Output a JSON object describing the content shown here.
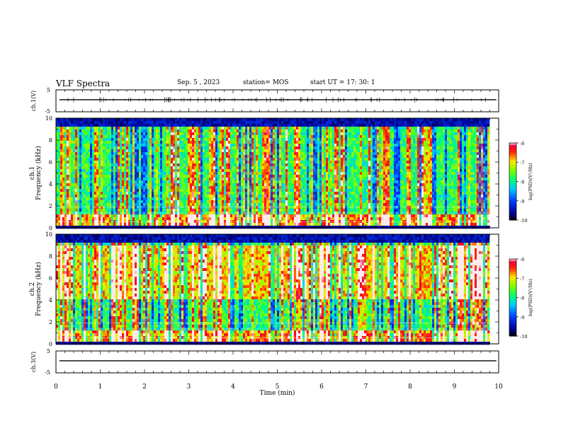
{
  "header": {
    "title": "VLF Spectra",
    "date": "Sep. 5 , 2023",
    "station": "station= MOS",
    "start": "start  UT =   17: 30: 1"
  },
  "chart_data": [
    {
      "type": "line",
      "ylabel": "ch.1(V)",
      "yticks": [
        "5",
        "-5"
      ],
      "ylim": [
        -5,
        5
      ],
      "xlim": [
        0,
        10
      ]
    },
    {
      "type": "heatmap",
      "ylabel": "ch.1",
      "ylabel2": "Frequency (kHz)",
      "yticks": [
        "0",
        "2",
        "4",
        "6",
        "8",
        "10"
      ],
      "ylim": [
        0,
        10
      ],
      "xlim": [
        0,
        10
      ],
      "xmax_data": 9.82,
      "colorbar": {
        "label": "log(PSD)(V²/Hz)",
        "ticks": [
          "-6",
          "-7",
          "-8",
          "-9",
          "-10"
        ],
        "range": [
          -10,
          -6
        ]
      },
      "emission_band_khz": [
        1,
        10
      ],
      "intense_band_khz": null
    },
    {
      "type": "heatmap",
      "ylabel": "ch.2",
      "ylabel2": "Frequency (kHz)",
      "yticks": [
        "0",
        "2",
        "4",
        "6",
        "8",
        "10"
      ],
      "ylim": [
        0,
        10
      ],
      "xlim": [
        0,
        10
      ],
      "xmax_data": 9.82,
      "colorbar": {
        "label": "log(PSD)(V²/Hz)",
        "ticks": [
          "-6",
          "-7",
          "-8",
          "-9",
          "-10"
        ],
        "range": [
          -10,
          -6
        ]
      },
      "emission_band_khz": [
        1,
        10
      ],
      "intense_band_khz": [
        4,
        9
      ]
    },
    {
      "type": "line",
      "ylabel": "ch.3(V)",
      "yticks": [
        "5",
        "-5"
      ],
      "ylim": [
        -5,
        5
      ],
      "xlim": [
        0,
        10
      ],
      "xlabel": "Time  (min)",
      "xticks": [
        "0",
        "1",
        "2",
        "3",
        "4",
        "5",
        "6",
        "7",
        "8",
        "9",
        "10"
      ]
    }
  ]
}
